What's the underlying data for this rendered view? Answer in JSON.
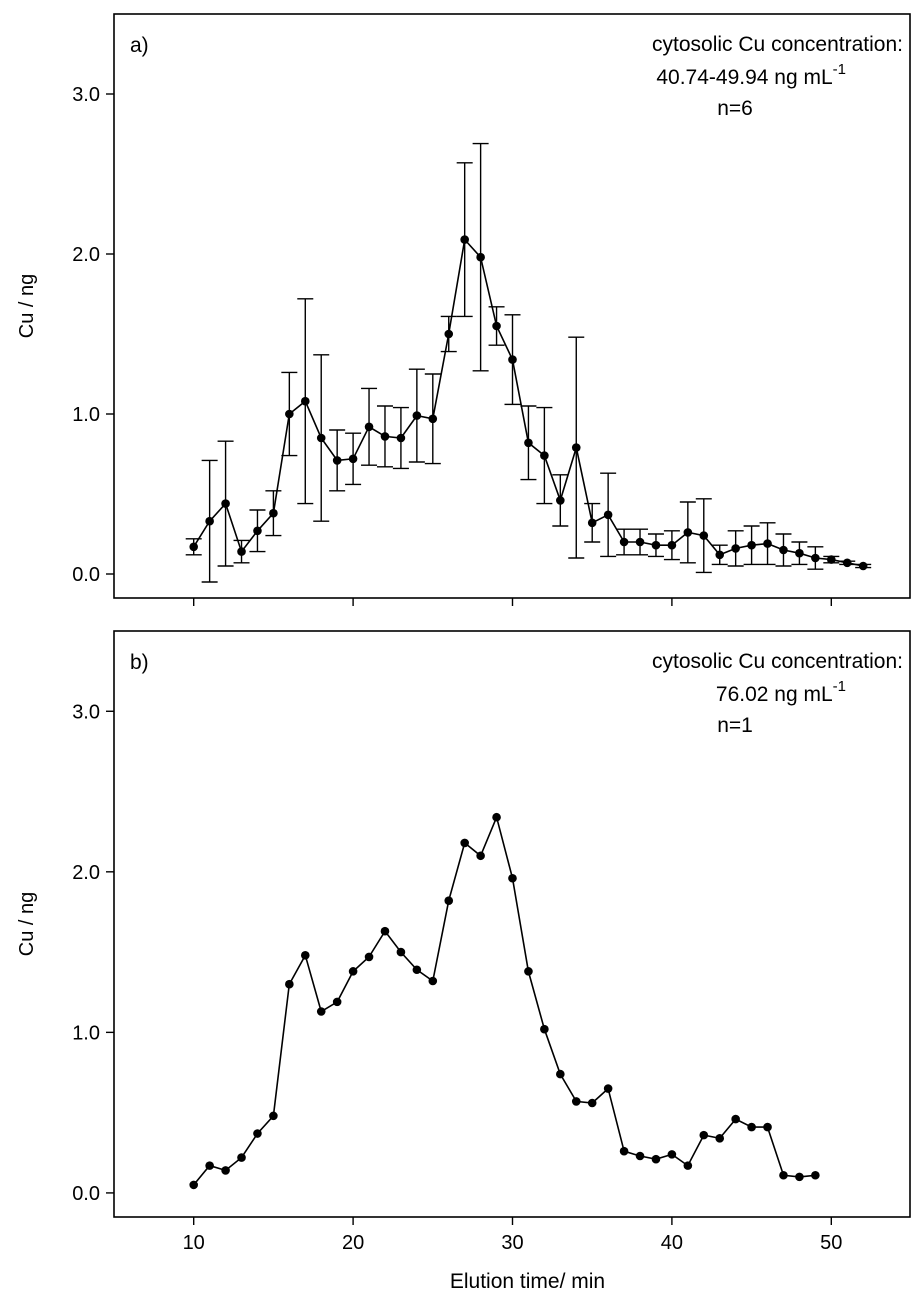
{
  "chart_data": [
    {
      "type": "line",
      "panel_label": "a)",
      "annotation": {
        "line1": "cytosolic Cu concentration:",
        "line2_main": "40.74-49.94 ng mL",
        "line2_sup": "-1",
        "line3": "n=6"
      },
      "ylabel": "Cu / ng",
      "xlabel": "",
      "xlim": [
        5,
        55
      ],
      "ylim": [
        -0.15,
        3.5
      ],
      "yticks": [
        0.0,
        1.0,
        2.0,
        3.0
      ],
      "ytick_labels": [
        "0.0",
        "1.0",
        "2.0",
        "3.0"
      ],
      "xticks": [
        10,
        20,
        30,
        40,
        50
      ],
      "xtick_labels": [],
      "series": [
        {
          "x": [
            10,
            11,
            12,
            13,
            14,
            15,
            16,
            17,
            18,
            19,
            20,
            21,
            22,
            23,
            24,
            25,
            26,
            27,
            28,
            29,
            30,
            31,
            32,
            33,
            34,
            35,
            36,
            37,
            38,
            39,
            40,
            41,
            42,
            43,
            44,
            45,
            46,
            47,
            48,
            49,
            50,
            51,
            52
          ],
          "y": [
            0.17,
            0.33,
            0.44,
            0.14,
            0.27,
            0.38,
            1.0,
            1.08,
            0.85,
            0.71,
            0.72,
            0.92,
            0.86,
            0.85,
            0.99,
            0.97,
            1.5,
            2.09,
            1.98,
            1.55,
            1.34,
            0.82,
            0.74,
            0.46,
            0.79,
            0.32,
            0.37,
            0.2,
            0.2,
            0.18,
            0.18,
            0.26,
            0.24,
            0.12,
            0.16,
            0.18,
            0.19,
            0.15,
            0.13,
            0.1,
            0.09,
            0.07,
            0.05
          ],
          "error": [
            0.05,
            0.38,
            0.39,
            0.07,
            0.13,
            0.14,
            0.26,
            0.64,
            0.52,
            0.19,
            0.16,
            0.24,
            0.19,
            0.19,
            0.29,
            0.28,
            0.11,
            0.48,
            0.71,
            0.12,
            0.28,
            0.23,
            0.3,
            0.16,
            0.69,
            0.12,
            0.26,
            0.08,
            0.08,
            0.07,
            0.09,
            0.19,
            0.23,
            0.06,
            0.11,
            0.12,
            0.13,
            0.1,
            0.07,
            0.07,
            0.02,
            0.01,
            0.01
          ]
        }
      ]
    },
    {
      "type": "line",
      "panel_label": "b)",
      "annotation": {
        "line1": "cytosolic Cu concentration:",
        "line2_main": "76.02 ng mL",
        "line2_sup": "-1",
        "line3": "n=1"
      },
      "ylabel": "Cu / ng",
      "xlabel": "Elution time/ min",
      "xlim": [
        5,
        55
      ],
      "ylim": [
        -0.15,
        3.5
      ],
      "yticks": [
        0.0,
        1.0,
        2.0,
        3.0
      ],
      "ytick_labels": [
        "0.0",
        "1.0",
        "2.0",
        "3.0"
      ],
      "xticks": [
        10,
        20,
        30,
        40,
        50
      ],
      "xtick_labels": [
        "10",
        "20",
        "30",
        "40",
        "50"
      ],
      "series": [
        {
          "x": [
            10,
            11,
            12,
            13,
            14,
            15,
            16,
            17,
            18,
            19,
            20,
            21,
            22,
            23,
            24,
            25,
            26,
            27,
            28,
            29,
            30,
            31,
            32,
            33,
            34,
            35,
            36,
            37,
            38,
            39,
            40,
            41,
            42,
            43,
            44,
            45,
            46,
            47,
            48,
            49
          ],
          "y": [
            0.05,
            0.17,
            0.14,
            0.22,
            0.37,
            0.48,
            1.3,
            1.48,
            1.13,
            1.19,
            1.38,
            1.47,
            1.63,
            1.5,
            1.39,
            1.32,
            1.82,
            2.18,
            2.1,
            2.34,
            1.96,
            1.38,
            1.02,
            0.74,
            0.57,
            0.56,
            0.65,
            0.26,
            0.23,
            0.21,
            0.24,
            0.17,
            0.36,
            0.34,
            0.46,
            0.41,
            0.41,
            0.11,
            0.1,
            0.11
          ]
        }
      ]
    }
  ]
}
